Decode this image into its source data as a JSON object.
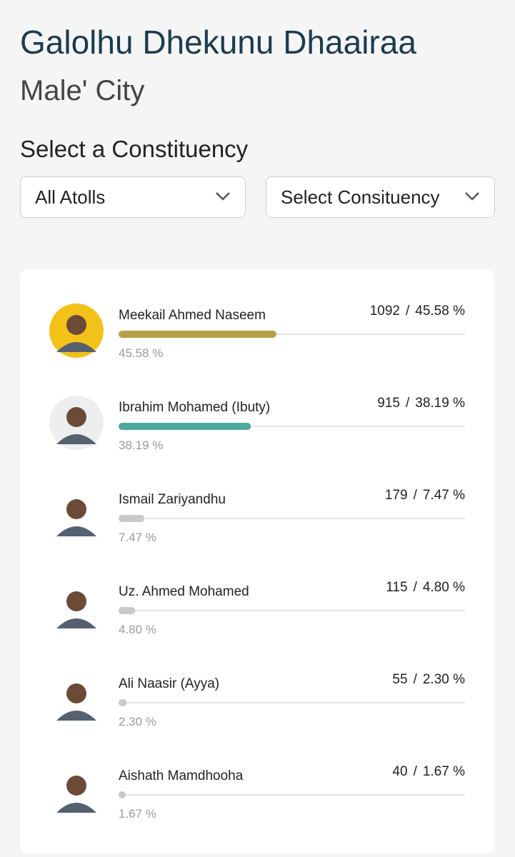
{
  "header": {
    "title": "Galolhu Dhekunu Dhaairaa",
    "subtitle": "Male' City"
  },
  "selector": {
    "label": "Select a Constituency",
    "atoll": "All Atolls",
    "constituency": "Select Consituency"
  },
  "results": {
    "separator": "/",
    "candidates": [
      {
        "name": "Meekail Ahmed Naseem",
        "votes": 1092,
        "share": 45.58,
        "share_label": "45.58 %",
        "color": "#b6a046",
        "avatar": "#f2c21b"
      },
      {
        "name": "Ibrahim Mohamed (Ibuty)",
        "votes": 915,
        "share": 38.19,
        "share_label": "38.19 %",
        "color": "#4aaa9c",
        "avatar": "#eeeeee"
      },
      {
        "name": "Ismail Zariyandhu",
        "votes": 179,
        "share": 7.47,
        "share_label": "7.47 %",
        "color": "#c9c9c9",
        "avatar": "#ffffff"
      },
      {
        "name": "Uz. Ahmed Mohamed",
        "votes": 115,
        "share": 4.8,
        "share_label": "4.80 %",
        "color": "#c9c9c9",
        "avatar": "#ffffff"
      },
      {
        "name": "Ali Naasir (Ayya)",
        "votes": 55,
        "share": 2.3,
        "share_label": "2.30 %",
        "color": "#c9c9c9",
        "avatar": "#ffffff"
      },
      {
        "name": "Aishath Mamdhooha",
        "votes": 40,
        "share": 1.67,
        "share_label": "1.67 %",
        "color": "#c9c9c9",
        "avatar": "#ffffff"
      }
    ]
  }
}
